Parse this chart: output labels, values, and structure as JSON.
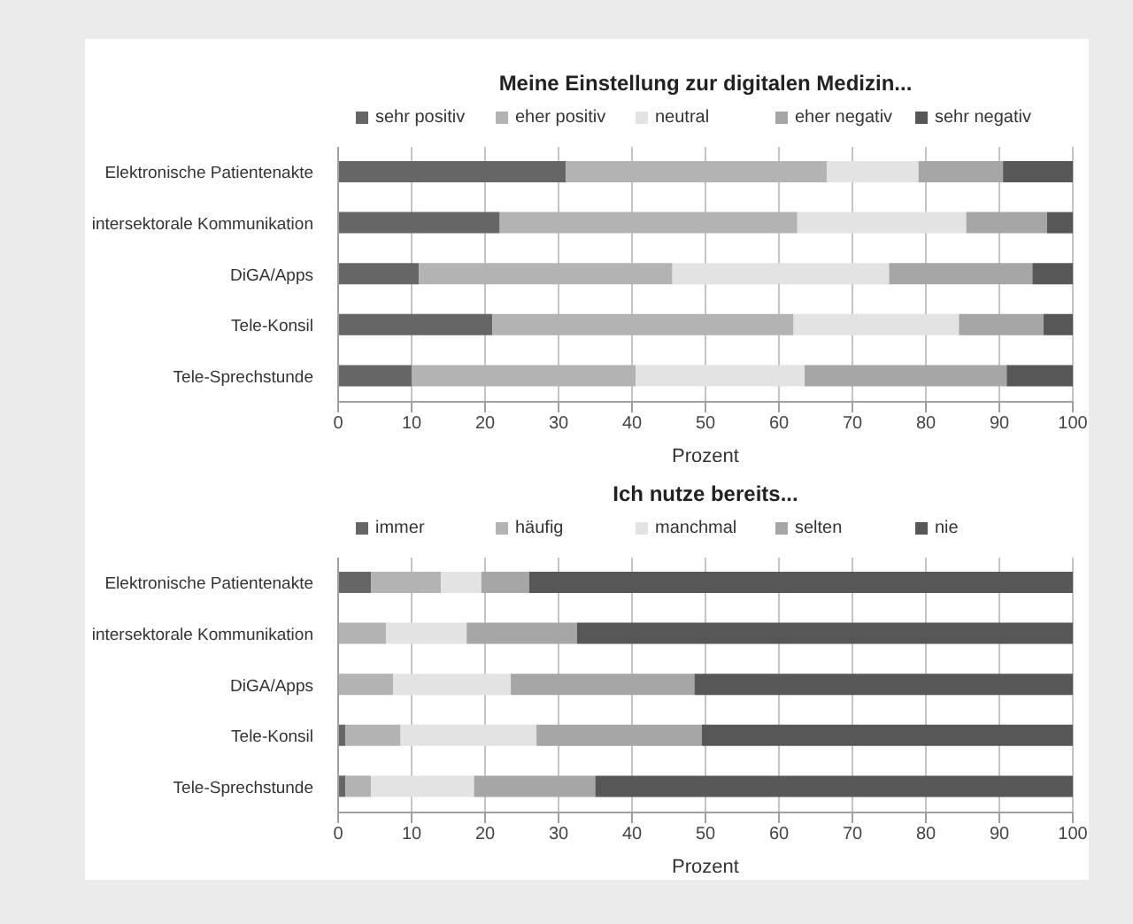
{
  "chart_data": [
    {
      "type": "bar",
      "orientation": "horizontal",
      "stacked": true,
      "title": "Meine Einstellung zur digitalen Medizin...",
      "xlabel": "Prozent",
      "categories": [
        "Elektronische Patientenakte",
        "intersektorale Kommunikation",
        "DiGA/Apps",
        "Tele-Konsil",
        "Tele-Sprechstunde"
      ],
      "series": [
        {
          "name": "sehr positiv",
          "color": "#666666",
          "values": [
            31,
            22,
            11,
            21,
            10
          ]
        },
        {
          "name": "eher positiv",
          "color": "#b3b3b3",
          "values": [
            35.5,
            40.5,
            34.5,
            41,
            30.5
          ]
        },
        {
          "name": "neutral",
          "color": "#e3e3e3",
          "values": [
            12.5,
            23,
            29.5,
            22.5,
            23
          ]
        },
        {
          "name": "eher negativ",
          "color": "#a6a6a6",
          "values": [
            11.5,
            11,
            19.5,
            11.5,
            27.5
          ]
        },
        {
          "name": "sehr negativ",
          "color": "#575757",
          "values": [
            9.5,
            3.5,
            5.5,
            4,
            9
          ]
        }
      ],
      "xlim": [
        0,
        100
      ],
      "xticks": [
        0,
        10,
        20,
        30,
        40,
        50,
        60,
        70,
        80,
        90,
        100
      ],
      "grid": "x",
      "legend": "top"
    },
    {
      "type": "bar",
      "orientation": "horizontal",
      "stacked": true,
      "title": "Ich nutze bereits...",
      "xlabel": "Prozent",
      "categories": [
        "Elektronische Patientenakte",
        "intersektorale Kommunikation",
        "DiGA/Apps",
        "Tele-Konsil",
        "Tele-Sprechstunde"
      ],
      "series": [
        {
          "name": "immer",
          "color": "#666666",
          "values": [
            4.5,
            0,
            0,
            1,
            1
          ]
        },
        {
          "name": "häufig",
          "color": "#b3b3b3",
          "values": [
            9.5,
            6.5,
            7.5,
            7.5,
            3.5
          ]
        },
        {
          "name": "manchmal",
          "color": "#e3e3e3",
          "values": [
            5.5,
            11,
            16,
            18.5,
            14
          ]
        },
        {
          "name": "selten",
          "color": "#a6a6a6",
          "values": [
            6.5,
            15,
            25,
            22.5,
            16.5
          ]
        },
        {
          "name": "nie",
          "color": "#575757",
          "values": [
            74,
            67.5,
            51.5,
            50.5,
            65
          ]
        }
      ],
      "xlim": [
        0,
        100
      ],
      "xticks": [
        0,
        10,
        20,
        30,
        40,
        50,
        60,
        70,
        80,
        90,
        100
      ],
      "grid": "x",
      "legend": "top"
    }
  ]
}
